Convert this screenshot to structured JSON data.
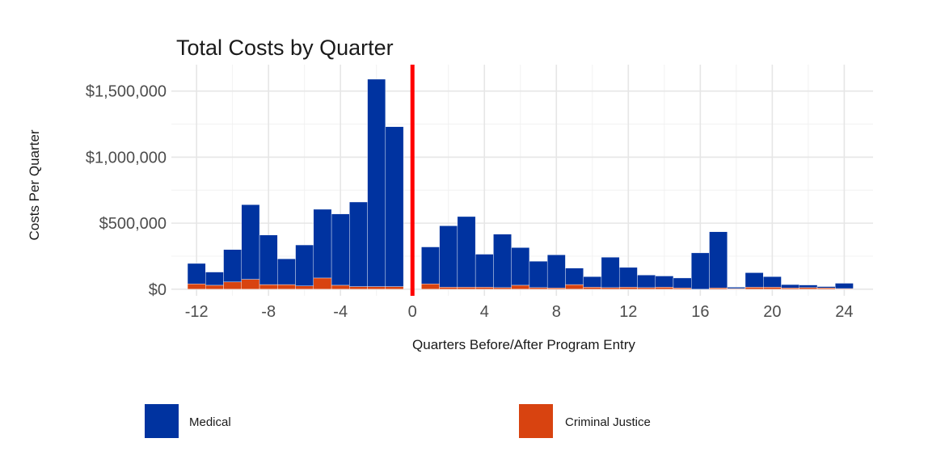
{
  "chart_data": {
    "type": "bar",
    "stacked": true,
    "title": "Total Costs by Quarter",
    "xlabel": "Quarters Before/After Program Entry",
    "ylabel": "Costs Per Quarter",
    "xlim": [
      -13.4,
      25.6
    ],
    "ylim": [
      -50000,
      1700000
    ],
    "x_ticks": [
      -12,
      -8,
      -4,
      0,
      4,
      8,
      12,
      16,
      20,
      24
    ],
    "x_tick_labels": [
      "-12",
      "-8",
      "-4",
      "0",
      "4",
      "8",
      "12",
      "16",
      "20",
      "24"
    ],
    "y_ticks": [
      0,
      500000,
      1000000,
      1500000
    ],
    "y_tick_labels": [
      "$0",
      "$500,000",
      "$1,000,000",
      "$1,500,000"
    ],
    "reference_line": {
      "x": 0,
      "color": "#ff0000"
    },
    "series": [
      {
        "name": "Medical",
        "color": "#0033a0",
        "x": [
          -12,
          -11,
          -10,
          -9,
          -8,
          -7,
          -6,
          -5,
          -4,
          -3,
          -2,
          -1,
          1,
          2,
          3,
          4,
          5,
          6,
          7,
          8,
          9,
          10,
          11,
          12,
          13,
          14,
          15,
          16,
          17,
          18,
          19,
          20,
          21,
          22,
          23,
          24
        ],
        "values": [
          155000,
          100000,
          245000,
          565000,
          375000,
          195000,
          310000,
          520000,
          540000,
          640000,
          1570000,
          1210000,
          280000,
          465000,
          535000,
          250000,
          405000,
          285000,
          200000,
          250000,
          125000,
          80000,
          230000,
          150000,
          95000,
          85000,
          75000,
          275000,
          425000,
          10000,
          110000,
          80000,
          25000,
          20000,
          10000,
          40000
        ]
      },
      {
        "name": "Criminal Justice",
        "color": "#d84310",
        "x": [
          -12,
          -11,
          -10,
          -9,
          -8,
          -7,
          -6,
          -5,
          -4,
          -3,
          -2,
          -1,
          1,
          2,
          3,
          4,
          5,
          6,
          7,
          8,
          9,
          10,
          11,
          12,
          13,
          14,
          15,
          16,
          17,
          18,
          19,
          20,
          21,
          22,
          23,
          24
        ],
        "values": [
          40000,
          30000,
          55000,
          75000,
          35000,
          35000,
          25000,
          85000,
          30000,
          20000,
          20000,
          20000,
          40000,
          15000,
          15000,
          15000,
          12000,
          30000,
          12000,
          10000,
          35000,
          15000,
          12000,
          15000,
          12000,
          15000,
          10000,
          0,
          10000,
          5000,
          15000,
          15000,
          10000,
          12000,
          10000,
          5000
        ]
      }
    ],
    "legend": [
      {
        "label": "Medical",
        "color": "#0033a0"
      },
      {
        "label": "Criminal Justice",
        "color": "#d84310"
      }
    ]
  }
}
